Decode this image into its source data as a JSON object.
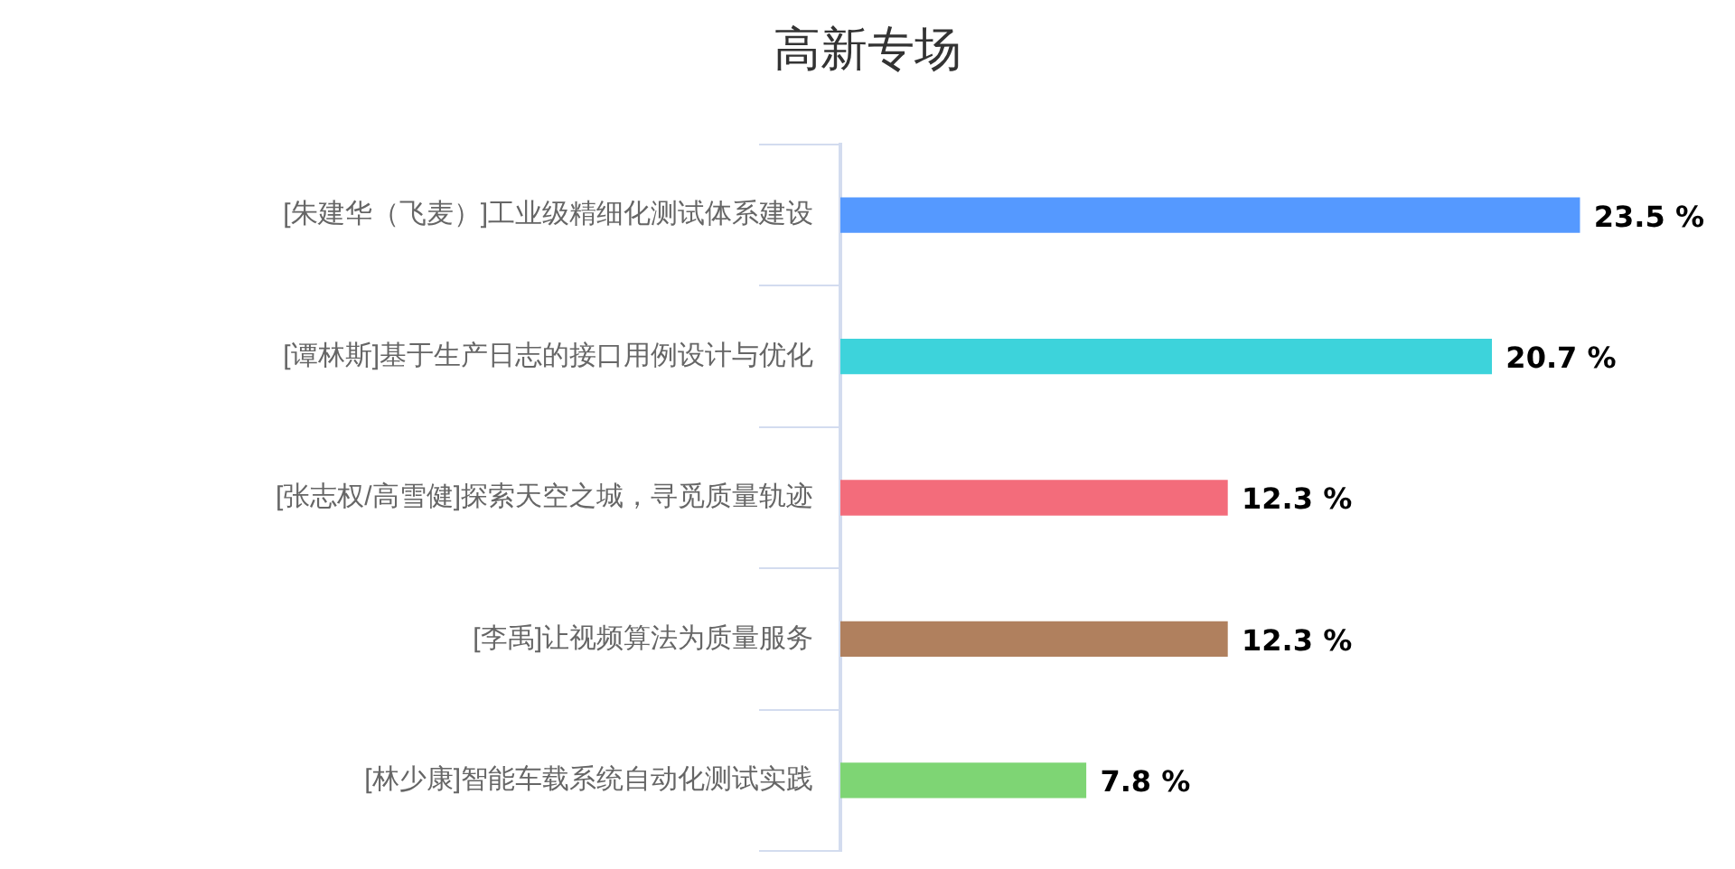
{
  "chart_data": {
    "type": "bar",
    "orientation": "horizontal",
    "title": "高新专场",
    "categories": [
      "[朱建华（飞麦）]工业级精细化测试体系建设",
      "[谭林斯]基于生产日志的接口用例设计与优化",
      "[张志权/高雪健]探索天空之城，寻觅质量轨迹",
      "[李禹]让视频算法为质量服务",
      "[林少康]智能车载系统自动化测试实践"
    ],
    "values": [
      23.5,
      20.7,
      12.3,
      12.3,
      7.8
    ],
    "colors": [
      "#5599ff",
      "#3dd3db",
      "#f36c7b",
      "#b0805e",
      "#7ed574"
    ],
    "value_labels": [
      "23.5 %",
      "20.7 %",
      "12.3 %",
      "12.3 %",
      "7.8 %"
    ],
    "grid": false,
    "legend": false,
    "tick_labels": "y"
  }
}
